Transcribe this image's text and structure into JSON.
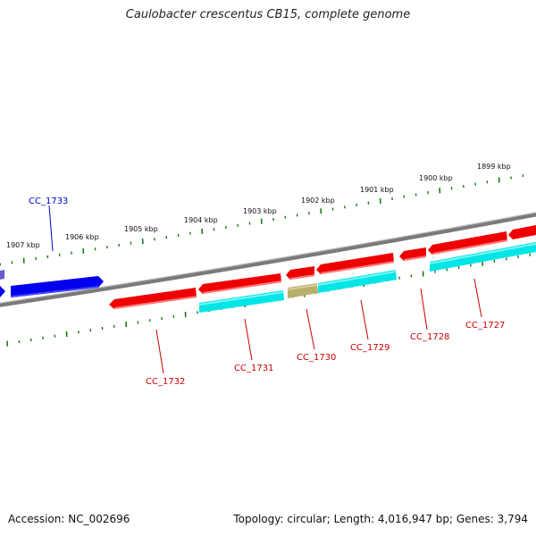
{
  "title": "Caulobacter crescentus CB15, complete genome",
  "footer": {
    "accession": "Accession: NC_002696",
    "summary": "Topology: circular; Length: 4,016,947 bp; Genes: 3,794"
  },
  "scale_labels": [
    "1907 kbp",
    "1906 kbp",
    "1905 kbp",
    "1904 kbp",
    "1903 kbp",
    "1902 kbp",
    "1901 kbp",
    "1900 kbp",
    "1899 kbp"
  ],
  "gene_labels": [
    "CC_1733",
    "CC_1732",
    "CC_1731",
    "CC_1730",
    "CC_1729",
    "CC_1728",
    "CC_1727"
  ],
  "colors": {
    "forward_gene": "#ee0000",
    "reverse_gene": "#00e5e5",
    "blue_gene": "#0000ee",
    "other_gene": "#b8b06a",
    "backbone": "#7a7a7a",
    "tick": "#1a7a1a",
    "label_red": "#cc0000",
    "label_blue": "#0000cc"
  }
}
